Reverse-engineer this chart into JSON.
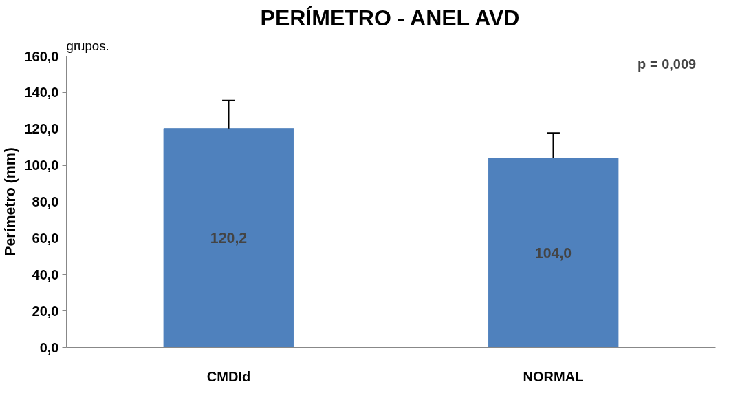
{
  "chart_data": {
    "type": "bar",
    "title": "PERÍMETRO - ANEL AVD",
    "ylabel": "Perímetro (mm)",
    "categories": [
      "CMDId",
      "NORMAL"
    ],
    "values": [
      120.2,
      104.0
    ],
    "color": "#4f81bd",
    "errors": [
      [
        120.2,
        135.7
      ],
      [
        104.0,
        117.7
      ]
    ],
    "value_labels": [
      "120,2",
      "104,0"
    ],
    "ylim": [
      0,
      160
    ],
    "yticks": [
      {
        "value": 0,
        "label": "0,0"
      },
      {
        "value": 20,
        "label": "20,0"
      },
      {
        "value": 40,
        "label": "40,0"
      },
      {
        "value": 60,
        "label": "60,0"
      },
      {
        "value": 80,
        "label": "80,0"
      },
      {
        "value": 100,
        "label": "100,0"
      },
      {
        "value": 120,
        "label": "120,0"
      },
      {
        "value": 140,
        "label": "140,0"
      },
      {
        "value": 160,
        "label": "160,0"
      }
    ],
    "annotations": [
      "p = 0,009",
      "grupos."
    ],
    "grid": false
  }
}
